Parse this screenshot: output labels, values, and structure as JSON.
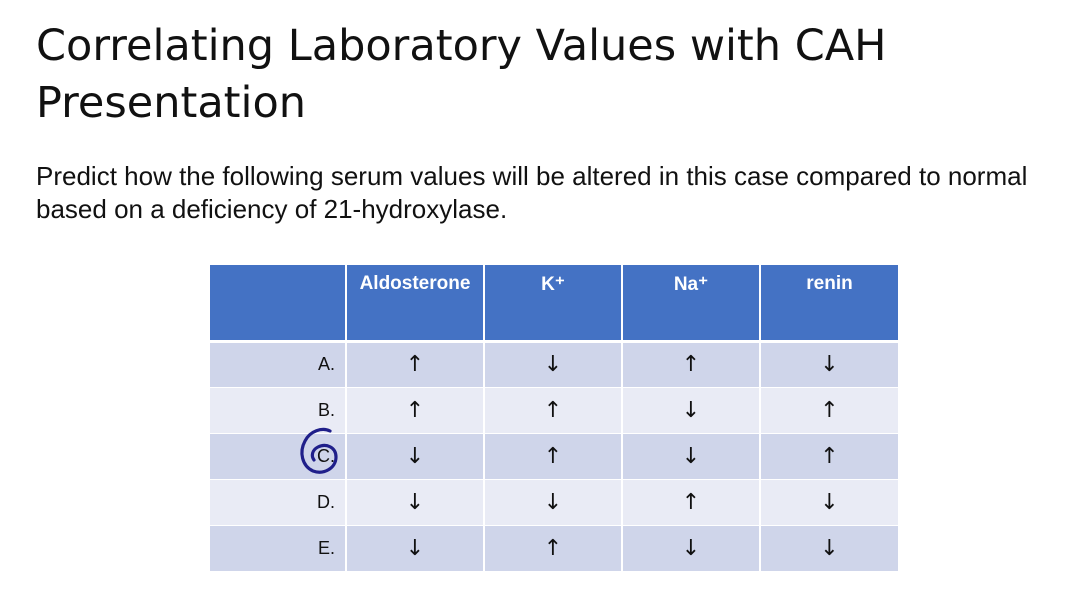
{
  "slide": {
    "title": "Correlating Laboratory Values with CAH Presentation",
    "body": "Predict how the following serum values will be altered in this case compared to normal based on a deficiency of 21-hydroxylase."
  },
  "table": {
    "columns": [
      "",
      "Aldosterone",
      "K⁺",
      "Na⁺",
      "renin"
    ],
    "rows": [
      {
        "label": "A.",
        "aldosterone": "↑",
        "k": "↓",
        "na": "↑",
        "renin": "↓"
      },
      {
        "label": "B.",
        "aldosterone": "↑",
        "k": "↑",
        "na": "↓",
        "renin": "↑"
      },
      {
        "label": "C.",
        "aldosterone": "↓",
        "k": "↑",
        "na": "↓",
        "renin": "↑"
      },
      {
        "label": "D.",
        "aldosterone": "↓",
        "k": "↓",
        "na": "↑",
        "renin": "↓"
      },
      {
        "label": "E.",
        "aldosterone": "↓",
        "k": "↑",
        "na": "↓",
        "renin": "↓"
      }
    ]
  },
  "annotation": {
    "circled_row": "C.",
    "ink_color": "#1f1f8a"
  },
  "colors": {
    "header": "#4472c4",
    "row_odd": "#cfd5ea",
    "row_even": "#e9ebf5"
  }
}
